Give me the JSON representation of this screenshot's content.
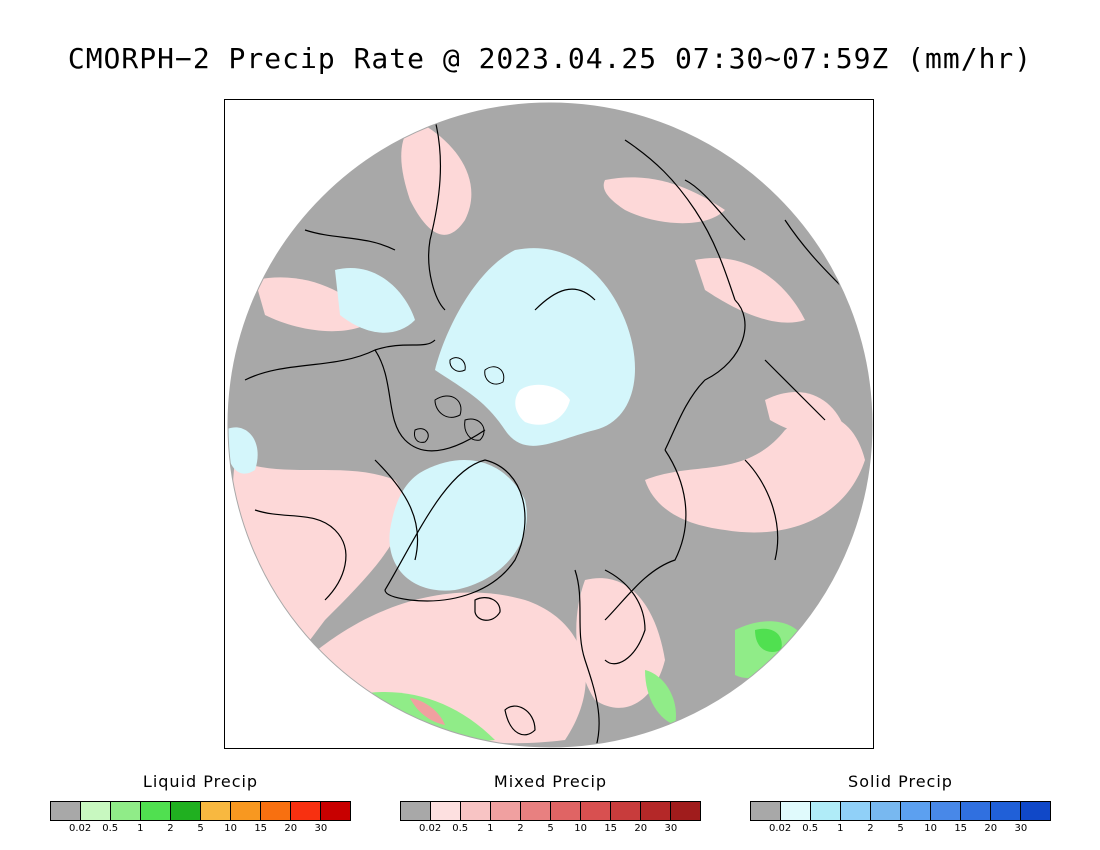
{
  "title": "CMORPH−2 Precip Rate @ 2023.04.25 07:30∼07:59Z (mm/hr)",
  "map": {
    "projection": "polar-stereographic-north",
    "no_precip_color": "#a8a8a8",
    "background_color": "#ffffff",
    "coastline_color": "#000000"
  },
  "legends": [
    {
      "id": "liquid",
      "title": "Liquid Precip",
      "colors": [
        "#a8a8a8",
        "#c8f8c0",
        "#90ec88",
        "#50e050",
        "#20b020",
        "#f8b840",
        "#f89820",
        "#f87010",
        "#f83010",
        "#c80000"
      ],
      "ticks": [
        "0.02",
        "0.5",
        "1",
        "2",
        "5",
        "10",
        "15",
        "20",
        "30"
      ]
    },
    {
      "id": "mixed",
      "title": "Mixed Precip",
      "colors": [
        "#a8a8a8",
        "#fde0e0",
        "#f8c4c4",
        "#f0a0a0",
        "#e88080",
        "#e06464",
        "#d85050",
        "#c83c3c",
        "#b42828",
        "#a01c1c"
      ],
      "ticks": [
        "0.02",
        "0.5",
        "1",
        "2",
        "5",
        "10",
        "15",
        "20",
        "30"
      ]
    },
    {
      "id": "solid",
      "title": "Solid Precip",
      "colors": [
        "#a8a8a8",
        "#e0fafc",
        "#b0ecf8",
        "#90d0f8",
        "#78b8f0",
        "#5ca0f0",
        "#4888e8",
        "#3070e0",
        "#2060d8",
        "#1048c8"
      ],
      "ticks": [
        "0.02",
        "0.5",
        "1",
        "2",
        "5",
        "10",
        "15",
        "20",
        "30"
      ]
    }
  ]
}
